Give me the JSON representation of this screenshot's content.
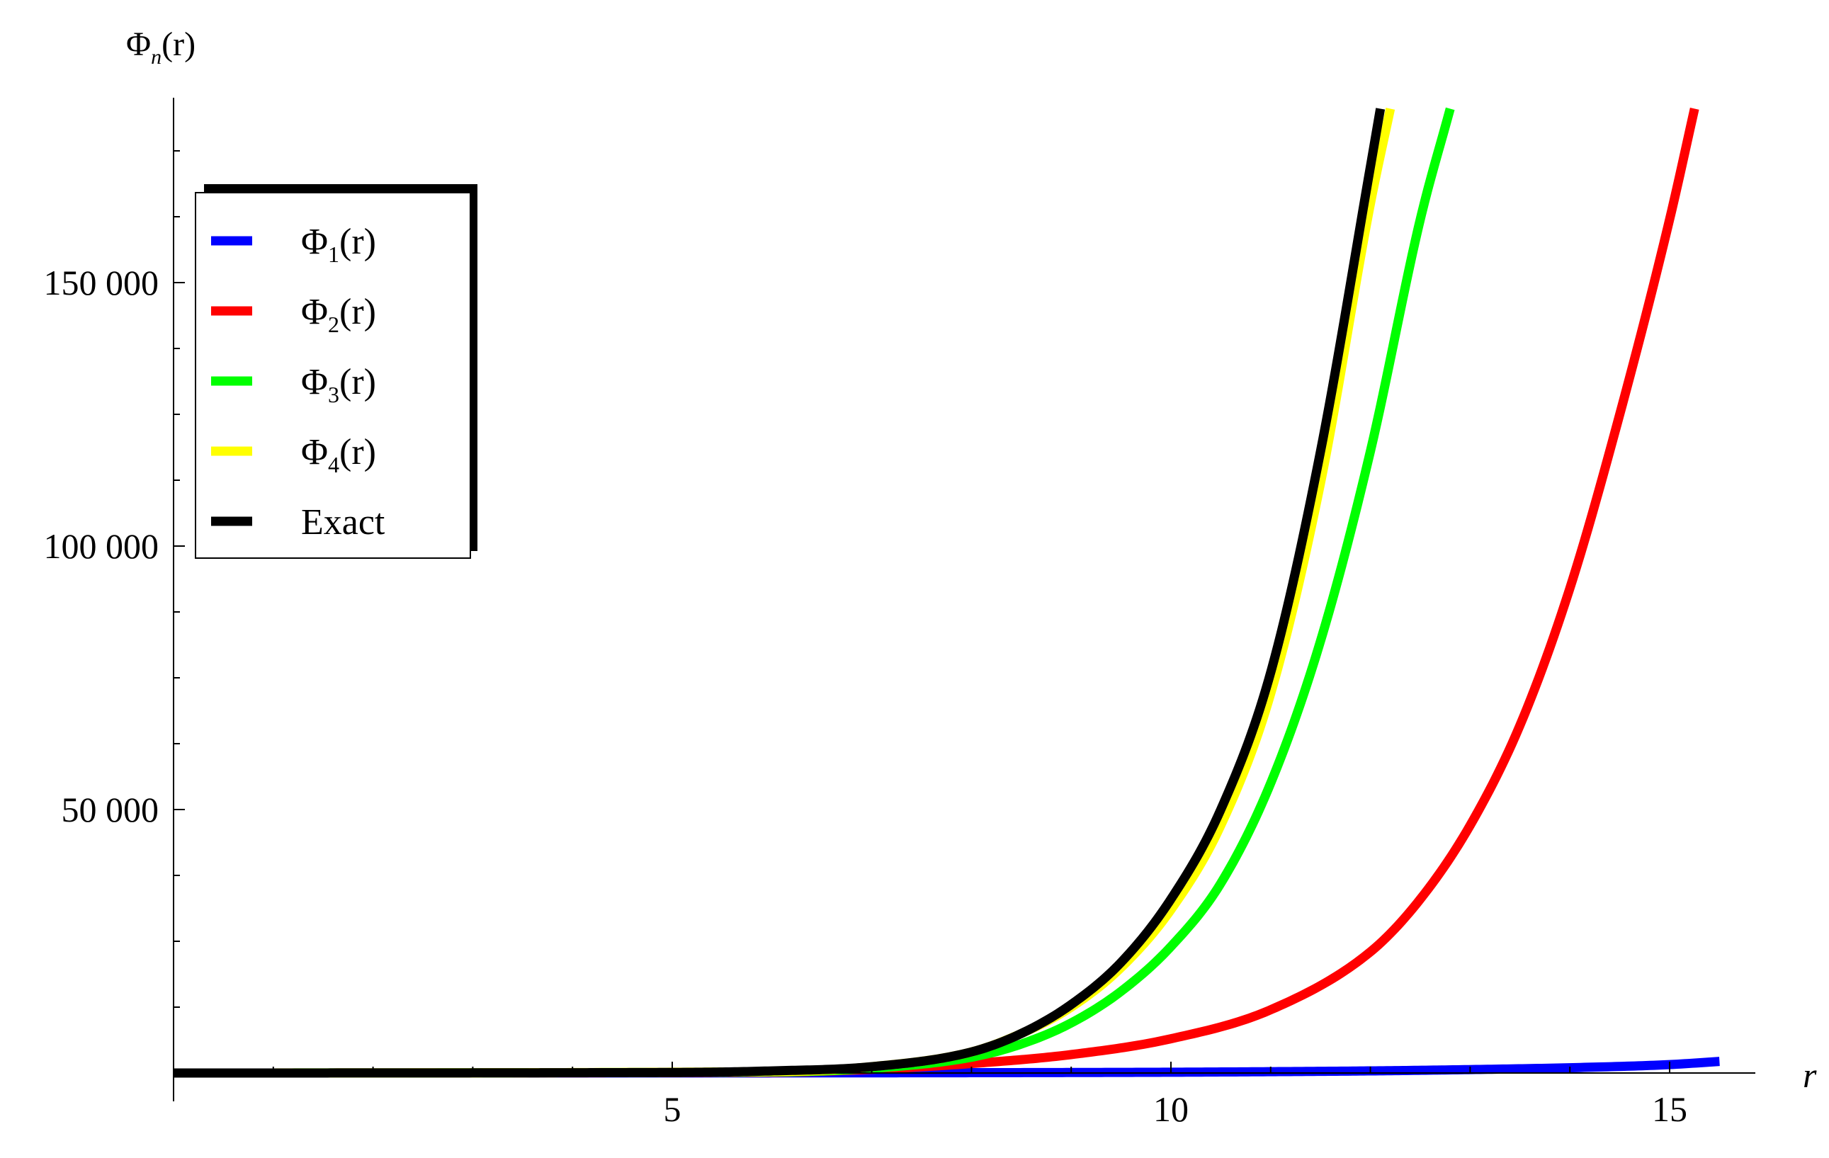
{
  "chart_data": {
    "type": "line",
    "ylabel": "Φn(r)",
    "ylabel_main": "Φ",
    "ylabel_sub": "n",
    "ylabel_tail": "(r)",
    "xlabel": "r",
    "xlim": [
      0,
      15.8
    ],
    "ylim": [
      -1000,
      185000
    ],
    "xticks": [
      5,
      10,
      15
    ],
    "xtick_labels": [
      "5",
      "10",
      "15"
    ],
    "yticks": [
      50000,
      100000,
      150000
    ],
    "ytick_labels": [
      "50 000",
      "100 000",
      "150 000"
    ],
    "grid": false,
    "legend_position": "top-left",
    "series": [
      {
        "name": "Φ1(r)",
        "label_main": "Φ",
        "label_sub": "1",
        "label_tail": "(r)",
        "color": "#0000ff",
        "x": [
          0,
          2,
          4,
          6,
          8,
          10,
          11,
          12,
          13,
          14,
          15,
          15.5
        ],
        "y": [
          0,
          3,
          10,
          25,
          60,
          150,
          250,
          400,
          650,
          1000,
          1600,
          2200
        ]
      },
      {
        "name": "Φ2(r)",
        "label_main": "Φ",
        "label_sub": "2",
        "label_tail": "(r)",
        "color": "#ff0000",
        "x": [
          0,
          6,
          7,
          8,
          9,
          10,
          11,
          12,
          12.5,
          13,
          13.5,
          14,
          14.5,
          15,
          15.25
        ],
        "y": [
          0,
          150,
          700,
          1800,
          3500,
          6500,
          12000,
          23000,
          33000,
          47000,
          66000,
          92000,
          125000,
          162000,
          183000
        ]
      },
      {
        "name": "Φ3(r)",
        "label_main": "Φ",
        "label_sub": "3",
        "label_tail": "(r)",
        "color": "#00ff00",
        "x": [
          0,
          6,
          7,
          8,
          8.5,
          9,
          9.5,
          10,
          10.5,
          11,
          11.5,
          12,
          12.5,
          12.8
        ],
        "y": [
          0,
          200,
          900,
          3000,
          5500,
          9500,
          15500,
          24000,
          36000,
          55000,
          82000,
          118000,
          162000,
          183000
        ]
      },
      {
        "name": "Φ4(r)",
        "label_main": "Φ",
        "label_sub": "4",
        "label_tail": "(r)",
        "color": "#ffff00",
        "x": [
          0,
          6,
          7,
          8,
          8.5,
          9,
          9.5,
          10,
          10.5,
          11,
          11.5,
          12,
          12.2
        ],
        "y": [
          0,
          250,
          1200,
          4000,
          7500,
          12500,
          20000,
          31000,
          47000,
          72000,
          112000,
          165000,
          183000
        ]
      },
      {
        "name": "Exact",
        "label_main": "Exact",
        "label_sub": "",
        "label_tail": "",
        "color": "#000000",
        "x": [
          0,
          5,
          6,
          7,
          8,
          8.5,
          9,
          9.5,
          10,
          10.5,
          11,
          11.5,
          12,
          12.1
        ],
        "y": [
          0,
          100,
          400,
          1200,
          4000,
          7500,
          13000,
          21000,
          33000,
          50000,
          76000,
          118000,
          172000,
          183000
        ]
      }
    ]
  }
}
